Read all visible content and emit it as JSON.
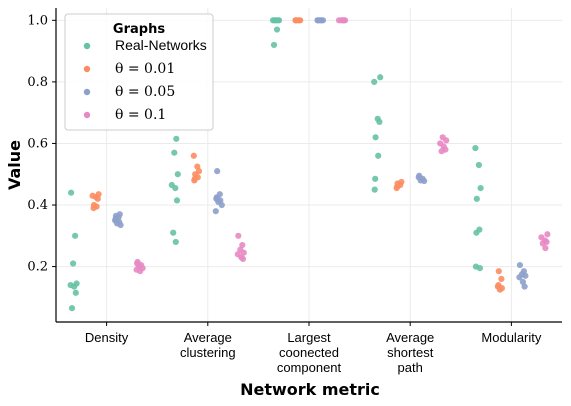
{
  "chart_data": {
    "type": "scatter",
    "subtype": "strip",
    "xlabel": "Network metric",
    "ylabel": "Value",
    "ylim": [
      0.02,
      1.04
    ],
    "yticks": [
      "0.2",
      "0.4",
      "0.6",
      "0.8",
      "1.0"
    ],
    "grid": true,
    "legend": {
      "title": "Graphs",
      "position": "top-left"
    },
    "categories": [
      [
        "Density"
      ],
      [
        "Average",
        "clustering"
      ],
      [
        "Largest",
        "coonected",
        "component"
      ],
      [
        "Average",
        "shortest",
        "path"
      ],
      [
        "Modularity"
      ]
    ],
    "series": [
      {
        "name": "Real-Networks",
        "color": "#66c2a5",
        "values": [
          [
            0.44,
            0.3,
            0.21,
            0.145,
            0.14,
            0.135,
            0.115,
            0.065
          ],
          [
            0.615,
            0.57,
            0.5,
            0.465,
            0.455,
            0.415,
            0.31,
            0.28
          ],
          [
            1.0,
            1.0,
            1.0,
            1.0,
            1.0,
            1.0,
            0.97,
            0.92
          ],
          [
            0.815,
            0.8,
            0.68,
            0.67,
            0.62,
            0.56,
            0.485,
            0.45
          ],
          [
            0.585,
            0.53,
            0.455,
            0.42,
            0.32,
            0.31,
            0.2,
            0.195
          ]
        ]
      },
      {
        "name": "θ = 0.01",
        "color": "#fc8d62",
        "values": [
          [
            0.435,
            0.43,
            0.425,
            0.42,
            0.4,
            0.395,
            0.39
          ],
          [
            0.56,
            0.525,
            0.51,
            0.5,
            0.49,
            0.485,
            0.48
          ],
          [
            1.0,
            1.0,
            1.0,
            1.0,
            1.0,
            1.0
          ],
          [
            0.475,
            0.47,
            0.465,
            0.46,
            0.455
          ],
          [
            0.185,
            0.16,
            0.14,
            0.135,
            0.13,
            0.125
          ]
        ]
      },
      {
        "name": "θ = 0.05",
        "color": "#8da0cb",
        "values": [
          [
            0.37,
            0.365,
            0.36,
            0.355,
            0.35,
            0.345,
            0.34,
            0.335
          ],
          [
            0.51,
            0.435,
            0.425,
            0.42,
            0.415,
            0.41,
            0.4,
            0.38
          ],
          [
            1.0,
            1.0,
            1.0,
            1.0,
            1.0,
            1.0
          ],
          [
            0.495,
            0.49,
            0.485,
            0.48,
            0.478
          ],
          [
            0.205,
            0.185,
            0.175,
            0.17,
            0.165,
            0.15,
            0.135
          ]
        ]
      },
      {
        "name": "θ = 0.1",
        "color": "#e78ac3",
        "values": [
          [
            0.215,
            0.21,
            0.205,
            0.2,
            0.195,
            0.19,
            0.185
          ],
          [
            0.3,
            0.27,
            0.255,
            0.245,
            0.24,
            0.23,
            0.225
          ],
          [
            1.0,
            1.0,
            1.0,
            1.0,
            1.0,
            1.0
          ],
          [
            0.62,
            0.61,
            0.6,
            0.59,
            0.58,
            0.575
          ],
          [
            0.305,
            0.295,
            0.285,
            0.28,
            0.275,
            0.26
          ]
        ]
      }
    ]
  },
  "legend_items": [
    {
      "label": "Real-Networks",
      "color": "#66c2a5"
    },
    {
      "label": "θ = 0.01",
      "color": "#fc8d62"
    },
    {
      "label": "θ = 0.05",
      "color": "#8da0cb"
    },
    {
      "label": "θ = 0.1",
      "color": "#e78ac3"
    }
  ]
}
